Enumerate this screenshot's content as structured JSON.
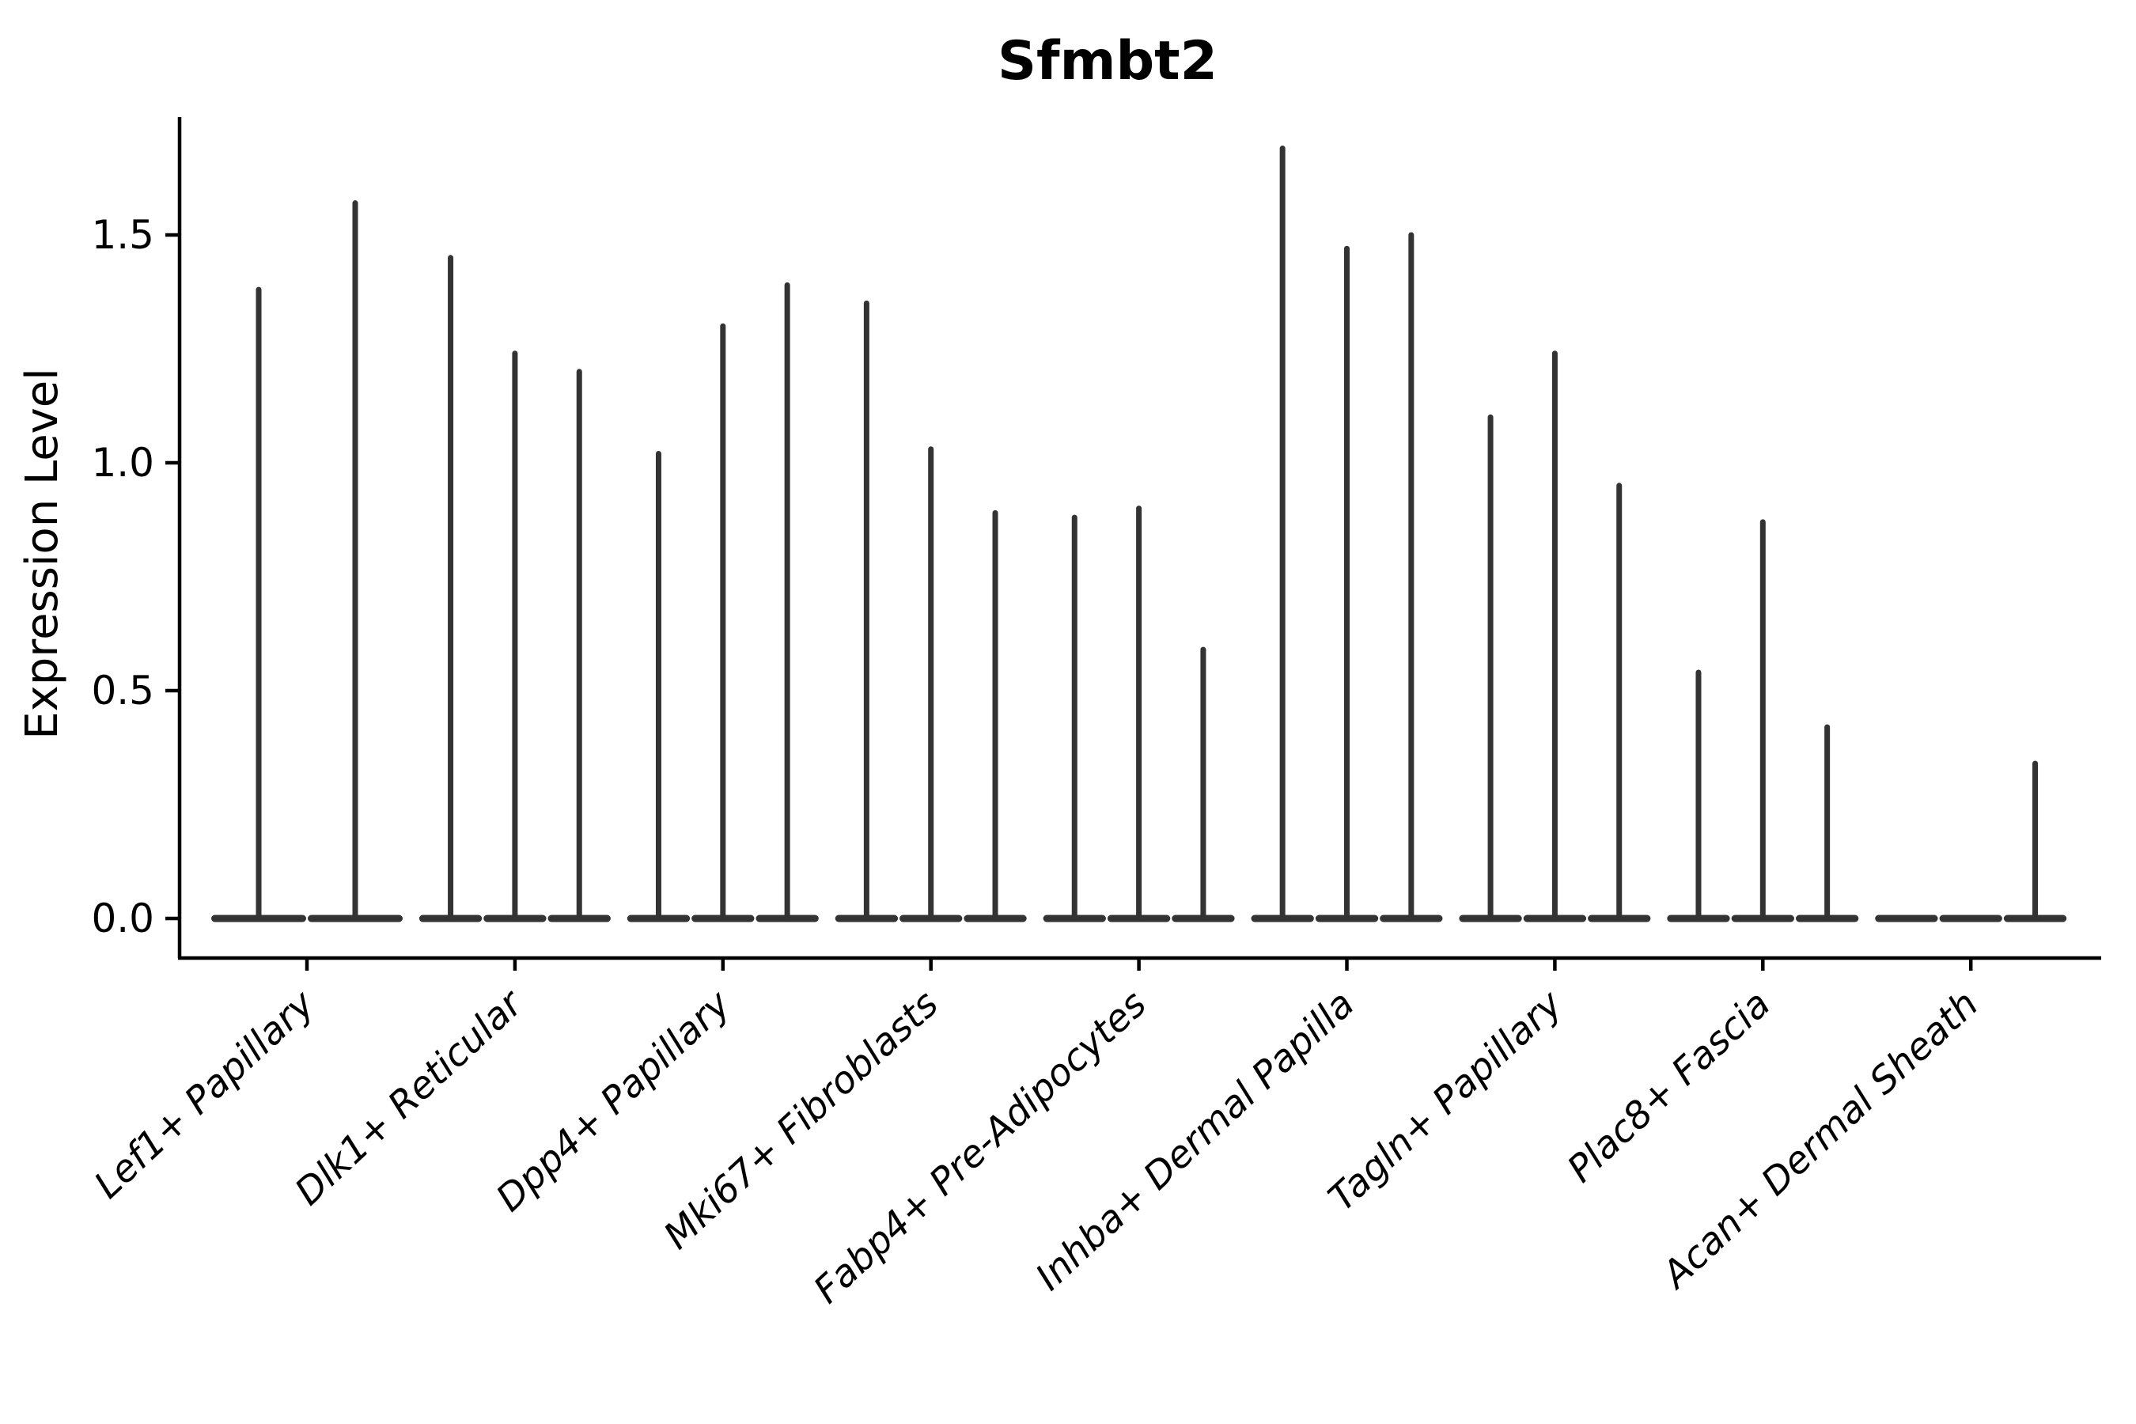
{
  "chart_data": {
    "type": "violin",
    "title": "Sfmbt2",
    "ylabel": "Expression Level",
    "xlabel": "",
    "grid": false,
    "legend": false,
    "background_color": "#ffffff",
    "violin_color": "#333333",
    "axis_color": "#000000",
    "ylim": [
      -0.08,
      1.76
    ],
    "y_ticks": [
      {
        "value": 0.0,
        "label": "0.0"
      },
      {
        "value": 0.5,
        "label": "0.5"
      },
      {
        "value": 1.0,
        "label": "1.0"
      },
      {
        "value": 1.5,
        "label": "1.5"
      }
    ],
    "categories": [
      "Lef1+ Papillary",
      "Dlk1+ Reticular",
      "Dpp4+ Papillary",
      "Mki67+ Fibroblasts",
      "Fabp4+ Pre-Adipocytes",
      "Inhba+ Dermal Papilla",
      "Tagln+ Papillary",
      "Plac8+ Fascia",
      "Acan+ Dermal Sheath"
    ],
    "violins": [
      {
        "category": "Lef1+ Papillary",
        "spike_max_expression": [
          1.38,
          1.57
        ]
      },
      {
        "category": "Dlk1+ Reticular",
        "spike_max_expression": [
          1.45,
          1.24,
          1.2
        ]
      },
      {
        "category": "Dpp4+ Papillary",
        "spike_max_expression": [
          1.02,
          1.3,
          1.39
        ]
      },
      {
        "category": "Mki67+ Fibroblasts",
        "spike_max_expression": [
          1.35,
          1.03,
          0.89
        ]
      },
      {
        "category": "Fabp4+ Pre-Adipocytes",
        "spike_max_expression": [
          0.88,
          0.9,
          0.59
        ]
      },
      {
        "category": "Inhba+ Dermal Papilla",
        "spike_max_expression": [
          1.69,
          1.47,
          1.5
        ]
      },
      {
        "category": "Tagln+ Papillary",
        "spike_max_expression": [
          1.1,
          1.24,
          0.95
        ]
      },
      {
        "category": "Plac8+ Fascia",
        "spike_max_expression": [
          0.54,
          0.87,
          0.42
        ]
      },
      {
        "category": "Acan+ Dermal Sheath",
        "spike_max_expression": [
          0.0,
          0.0,
          0.34
        ]
      }
    ],
    "violin_shape_note": "bulk of cells at 0 expression: flat wide base at y=0 with thin spike to max"
  }
}
